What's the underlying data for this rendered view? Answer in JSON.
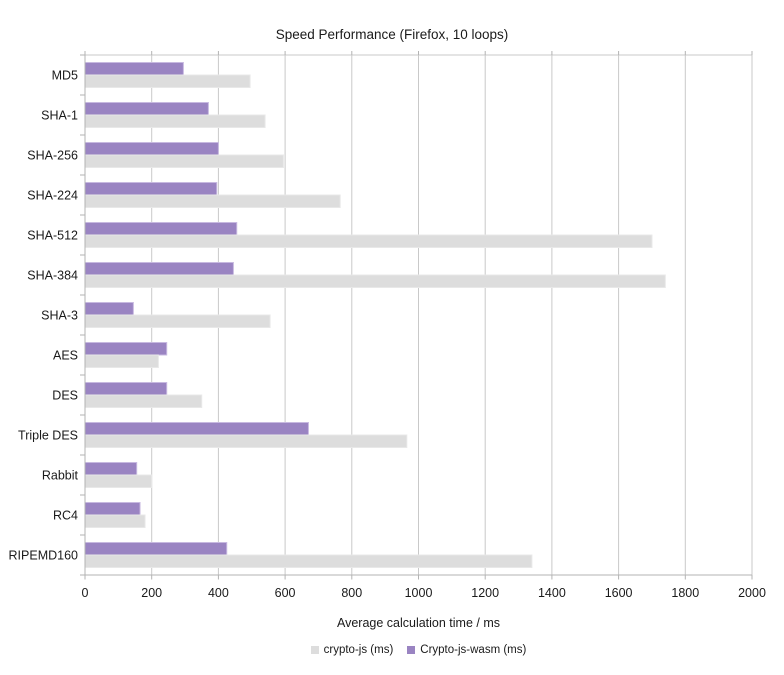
{
  "chart_data": {
    "type": "bar",
    "orientation": "horizontal",
    "title": "Speed Performance (Firefox, 10 loops)",
    "xlabel": "Average calculation time / ms",
    "xlim": [
      0,
      2000
    ],
    "xticks": [
      0,
      200,
      400,
      600,
      800,
      1000,
      1200,
      1400,
      1600,
      1800,
      2000
    ],
    "grid": true,
    "legend_position": "bottom",
    "categories": [
      "MD5",
      "SHA-1",
      "SHA-256",
      "SHA-224",
      "SHA-512",
      "SHA-384",
      "SHA-3",
      "AES",
      "DES",
      "Triple DES",
      "Rabbit",
      "RC4",
      "RIPEMD160"
    ],
    "series": [
      {
        "name": "crypto-js (ms)",
        "color": "#dddddd",
        "values": [
          495,
          540,
          595,
          765,
          1700,
          1740,
          555,
          220,
          350,
          965,
          200,
          180,
          1340
        ]
      },
      {
        "name": "Crypto-js-wasm (ms)",
        "color": "#9a84c2",
        "values": [
          295,
          370,
          400,
          395,
          455,
          445,
          145,
          245,
          245,
          670,
          155,
          165,
          425
        ]
      }
    ]
  }
}
